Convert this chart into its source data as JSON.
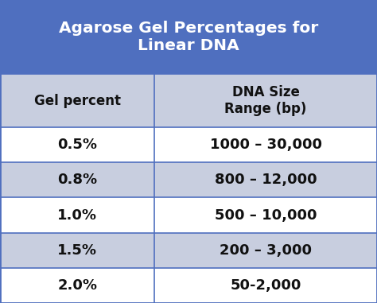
{
  "title": "Agarose Gel Percentages for\nLinear DNA",
  "title_bg_color": "#4F6FBF",
  "title_text_color": "#FFFFFF",
  "header_col1": "Gel percent",
  "header_col2": "DNA Size\nRange (bp)",
  "header_bg_color": "#C8CEDF",
  "row_bg_colors": [
    "#FFFFFF",
    "#C8CEDF",
    "#FFFFFF",
    "#C8CEDF",
    "#FFFFFF"
  ],
  "rows": [
    [
      "0.5%",
      "1000 – 30,000"
    ],
    [
      "0.8%",
      "800 – 12,000"
    ],
    [
      "1.0%",
      "500 – 10,000"
    ],
    [
      "1.5%",
      "200 – 3,000"
    ],
    [
      "2.0%",
      "50-2,000"
    ]
  ],
  "border_color": "#4F6FBF",
  "divider_color": "#4F6FBF",
  "text_color": "#111111",
  "fig_bg_color": "#FFFFFF",
  "title_fontsize": 14.5,
  "header_fontsize": 12,
  "data_fontsize": 13,
  "col_split": 0.41
}
